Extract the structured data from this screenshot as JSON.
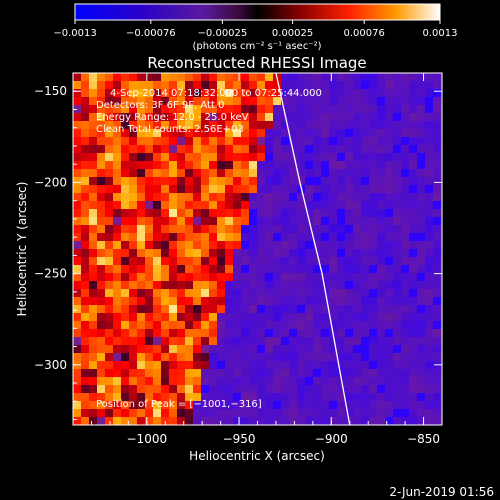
{
  "chart_data": {
    "type": "heatmap",
    "title": "Reconstructed RHESSI Image",
    "xlabel": "Heliocentric X (arcsec)",
    "ylabel": "Heliocentric Y (arcsec)",
    "xlim": [
      -1040,
      -840
    ],
    "ylim": [
      -333,
      -140
    ],
    "x_ticks": [
      -1000,
      -950,
      -900,
      -850
    ],
    "y_ticks": [
      -150,
      -200,
      -250,
      -300
    ],
    "x_tick_labels": [
      "−1000",
      "−950",
      "−900",
      "−850"
    ],
    "y_tick_labels": [
      "−150",
      "−200",
      "−250",
      "−300"
    ],
    "colorbar": {
      "range": [
        -0.0013,
        0.0013
      ],
      "ticks": [
        -0.0013,
        -0.00076,
        -0.00025,
        0.00025,
        0.00076,
        0.0013
      ],
      "tick_labels": [
        "−0.0013",
        "−0.00076",
        "−0.00025",
        "0.00025",
        "0.00076",
        "0.0013"
      ],
      "unit_label": "(photons cm⁻² s⁻¹ asec⁻²)"
    },
    "annotations": [
      "4-Sep-2014 07:18:32.000 to 07:25:44.000",
      "Detectors: 3F 6F 9F, Att 0",
      "Energy Range: 12.0 - 25.0 keV",
      "Clean     Total counts: 2.56E+03"
    ],
    "peak_label": "Position of Peak = [−1001,−316]",
    "limb_curve": [
      [
        -930,
        -140
      ],
      [
        -917,
        -200
      ],
      [
        -905,
        -250
      ],
      [
        -890,
        -333
      ]
    ],
    "date_stamp": "2-Jun-2019 01:56"
  }
}
